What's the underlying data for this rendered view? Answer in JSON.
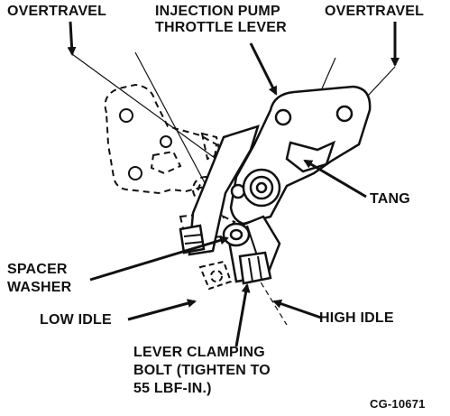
{
  "labels": {
    "overtravel_left": "OVERTRAVEL",
    "pump_lever_line1": "INJECTION PUMP",
    "pump_lever_line2": "THROTTLE LEVER",
    "overtravel_right": "OVERTRAVEL",
    "tang": "TANG",
    "spacer_line1": "SPACER",
    "spacer_line2": "WASHER",
    "low_idle": "LOW IDLE",
    "high_idle": "HIGH IDLE",
    "bolt_line1": "LEVER CLAMPING",
    "bolt_line2": "BOLT (TIGHTEN TO",
    "bolt_line3": "55 LBF-IN.)",
    "figure_id": "CG-10671"
  },
  "colors": {
    "ink": "#111111",
    "paper": "#ffffff"
  }
}
